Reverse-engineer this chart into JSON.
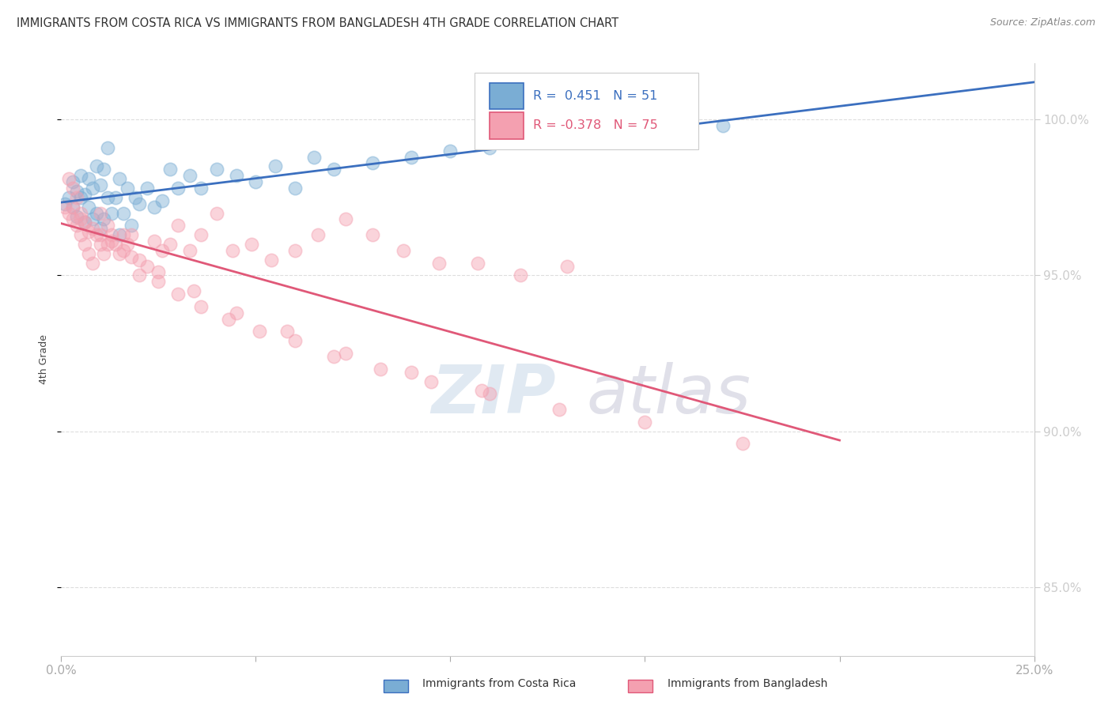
{
  "title": "IMMIGRANTS FROM COSTA RICA VS IMMIGRANTS FROM BANGLADESH 4TH GRADE CORRELATION CHART",
  "source": "Source: ZipAtlas.com",
  "ylabel": "4th Grade",
  "ytick_labels": [
    "100.0%",
    "95.0%",
    "90.0%",
    "85.0%"
  ],
  "ytick_values": [
    1.0,
    0.95,
    0.9,
    0.85
  ],
  "xlim": [
    0.0,
    0.25
  ],
  "ylim": [
    0.828,
    1.018
  ],
  "legend1_label": "R =  0.451   N = 51",
  "legend2_label": "R = -0.378   N = 75",
  "legend_label_cr": "Immigrants from Costa Rica",
  "legend_label_bd": "Immigrants from Bangladesh",
  "color_cr": "#7AADD4",
  "color_bd": "#F4A0B0",
  "line_color_cr": "#3B6FBF",
  "line_color_bd": "#E05878",
  "watermark_zip": "ZIP",
  "watermark_atlas": "atlas",
  "background_color": "#FFFFFF",
  "grid_color": "#DDDDDD",
  "cr_x": [
    0.001,
    0.002,
    0.003,
    0.003,
    0.004,
    0.004,
    0.005,
    0.005,
    0.006,
    0.006,
    0.007,
    0.007,
    0.008,
    0.008,
    0.009,
    0.009,
    0.01,
    0.01,
    0.011,
    0.011,
    0.012,
    0.012,
    0.013,
    0.014,
    0.015,
    0.015,
    0.016,
    0.017,
    0.018,
    0.019,
    0.02,
    0.022,
    0.024,
    0.026,
    0.028,
    0.03,
    0.033,
    0.036,
    0.04,
    0.045,
    0.05,
    0.055,
    0.06,
    0.065,
    0.07,
    0.08,
    0.09,
    0.1,
    0.11,
    0.15,
    0.17
  ],
  "cr_y": [
    0.973,
    0.975,
    0.972,
    0.98,
    0.969,
    0.977,
    0.975,
    0.982,
    0.967,
    0.976,
    0.972,
    0.981,
    0.968,
    0.978,
    0.97,
    0.985,
    0.965,
    0.979,
    0.968,
    0.984,
    0.975,
    0.991,
    0.97,
    0.975,
    0.963,
    0.981,
    0.97,
    0.978,
    0.966,
    0.975,
    0.973,
    0.978,
    0.972,
    0.974,
    0.984,
    0.978,
    0.982,
    0.978,
    0.984,
    0.982,
    0.98,
    0.985,
    0.978,
    0.988,
    0.984,
    0.986,
    0.988,
    0.99,
    0.991,
    0.996,
    0.998
  ],
  "bd_x": [
    0.001,
    0.002,
    0.002,
    0.003,
    0.003,
    0.004,
    0.004,
    0.005,
    0.005,
    0.006,
    0.006,
    0.007,
    0.007,
    0.008,
    0.009,
    0.01,
    0.01,
    0.011,
    0.012,
    0.013,
    0.014,
    0.015,
    0.016,
    0.017,
    0.018,
    0.02,
    0.022,
    0.024,
    0.026,
    0.028,
    0.03,
    0.033,
    0.036,
    0.04,
    0.044,
    0.049,
    0.054,
    0.06,
    0.066,
    0.073,
    0.08,
    0.088,
    0.097,
    0.107,
    0.118,
    0.13,
    0.01,
    0.013,
    0.016,
    0.02,
    0.025,
    0.03,
    0.036,
    0.043,
    0.051,
    0.06,
    0.07,
    0.082,
    0.095,
    0.11,
    0.003,
    0.005,
    0.008,
    0.012,
    0.018,
    0.025,
    0.034,
    0.045,
    0.058,
    0.073,
    0.09,
    0.108,
    0.128,
    0.15,
    0.175
  ],
  "bd_y": [
    0.972,
    0.97,
    0.981,
    0.968,
    0.978,
    0.966,
    0.975,
    0.963,
    0.97,
    0.96,
    0.967,
    0.957,
    0.964,
    0.954,
    0.963,
    0.96,
    0.97,
    0.957,
    0.966,
    0.963,
    0.96,
    0.957,
    0.963,
    0.96,
    0.963,
    0.955,
    0.953,
    0.961,
    0.958,
    0.96,
    0.966,
    0.958,
    0.963,
    0.97,
    0.958,
    0.96,
    0.955,
    0.958,
    0.963,
    0.968,
    0.963,
    0.958,
    0.954,
    0.954,
    0.95,
    0.953,
    0.963,
    0.961,
    0.958,
    0.95,
    0.948,
    0.944,
    0.94,
    0.936,
    0.932,
    0.929,
    0.924,
    0.92,
    0.916,
    0.912,
    0.972,
    0.968,
    0.965,
    0.96,
    0.956,
    0.951,
    0.945,
    0.938,
    0.932,
    0.925,
    0.919,
    0.913,
    0.907,
    0.903,
    0.896
  ]
}
